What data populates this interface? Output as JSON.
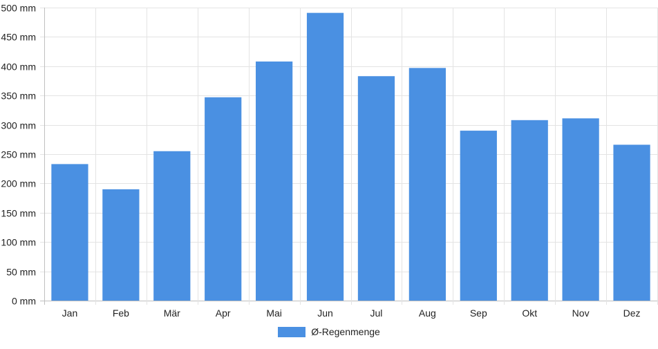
{
  "chart_data": {
    "type": "bar",
    "categories": [
      "Jan",
      "Feb",
      "Mär",
      "Apr",
      "Mai",
      "Jun",
      "Jul",
      "Aug",
      "Sep",
      "Okt",
      "Nov",
      "Dez"
    ],
    "series": [
      {
        "name": "Ø-Regenmenge",
        "values": [
          233,
          190,
          255,
          347,
          408,
          491,
          383,
          397,
          290,
          308,
          311,
          266
        ],
        "color": "#4a90e2"
      }
    ],
    "ylim": [
      0,
      500
    ],
    "ytick_values": [
      0,
      50,
      100,
      150,
      200,
      250,
      300,
      350,
      400,
      450,
      500
    ],
    "ytick_labels": [
      "0 mm",
      "50 mm",
      "100 mm",
      "150 mm",
      "200 mm",
      "250 mm",
      "300 mm",
      "350 mm",
      "400 mm",
      "450 mm",
      "500 mm"
    ],
    "grid": true,
    "legend_position": "bottom-center"
  }
}
